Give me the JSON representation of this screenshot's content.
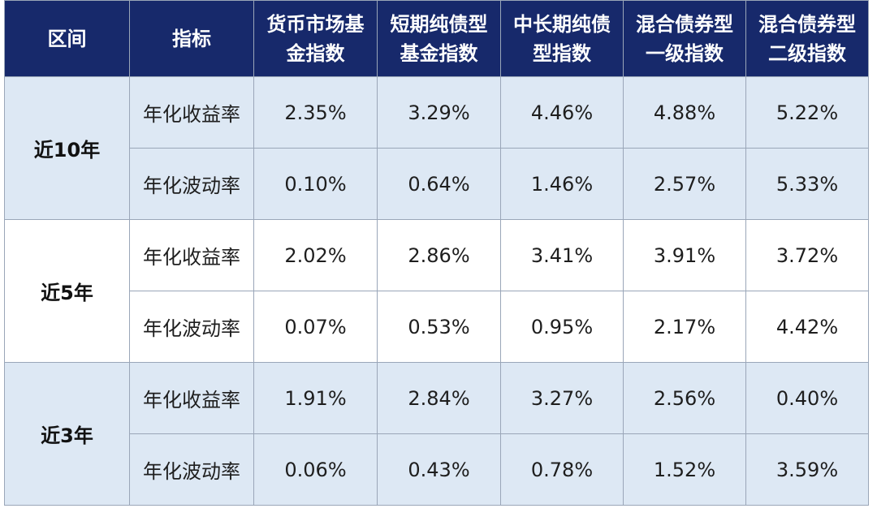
{
  "table": {
    "headers": [
      {
        "line1": "区间",
        "line2": ""
      },
      {
        "line1": "指标",
        "line2": ""
      },
      {
        "line1": "货币市场基",
        "line2": "金指数"
      },
      {
        "line1": "短期纯债型",
        "line2": "基金指数"
      },
      {
        "line1": "中长期纯债",
        "line2": "型指数"
      },
      {
        "line1": "混合债券型",
        "line2": "一级指数"
      },
      {
        "line1": "混合债券型",
        "line2": "二级指数"
      }
    ],
    "groups": [
      {
        "region": "近10年",
        "rows": [
          {
            "metric": "年化收益率",
            "values": [
              "2.35%",
              "3.29%",
              "4.46%",
              "4.88%",
              "5.22%"
            ]
          },
          {
            "metric": "年化波动率",
            "values": [
              "0.10%",
              "0.64%",
              "1.46%",
              "2.57%",
              "5.33%"
            ]
          }
        ]
      },
      {
        "region": "近5年",
        "rows": [
          {
            "metric": "年化收益率",
            "values": [
              "2.02%",
              "2.86%",
              "3.41%",
              "3.91%",
              "3.72%"
            ]
          },
          {
            "metric": "年化波动率",
            "values": [
              "0.07%",
              "0.53%",
              "0.95%",
              "2.17%",
              "4.42%"
            ]
          }
        ]
      },
      {
        "region": "近3年",
        "rows": [
          {
            "metric": "年化收益率",
            "values": [
              "1.91%",
              "2.84%",
              "3.27%",
              "2.56%",
              "0.40%"
            ]
          },
          {
            "metric": "年化波动率",
            "values": [
              "0.06%",
              "0.43%",
              "0.78%",
              "1.52%",
              "3.59%"
            ]
          }
        ]
      }
    ]
  },
  "colors": {
    "header_bg": "#17296b",
    "header_text": "#ffffff",
    "band_blue": "#dde8f4",
    "band_white": "#ffffff"
  }
}
